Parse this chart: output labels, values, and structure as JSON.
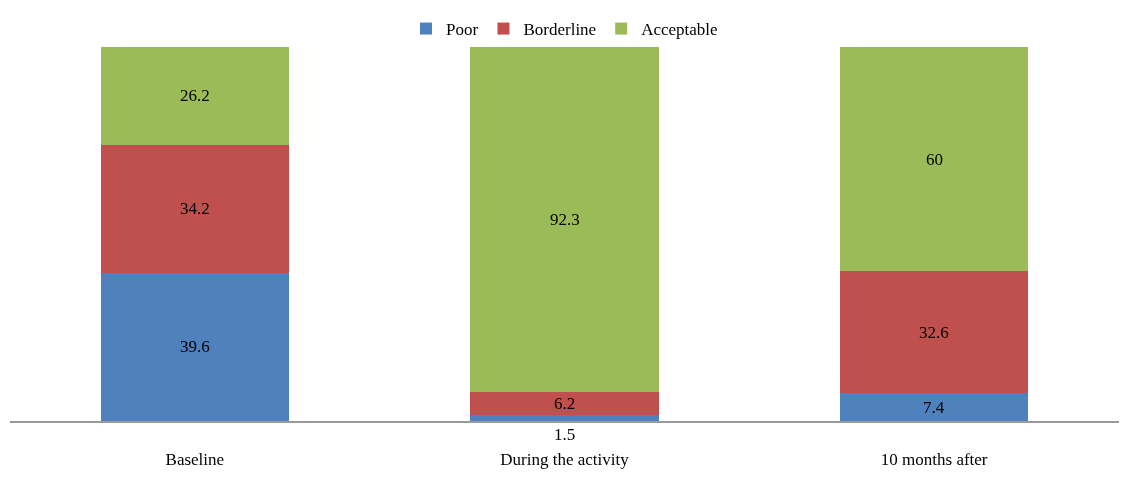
{
  "chart_data": {
    "type": "bar",
    "stacked": true,
    "categories": [
      "Baseline",
      "During the activity",
      "10 months after"
    ],
    "series": [
      {
        "name": "Poor",
        "color": "#4f81bd",
        "values": [
          39.6,
          1.5,
          7.4
        ]
      },
      {
        "name": "Borderline",
        "color": "#c0504d",
        "values": [
          34.2,
          6.2,
          32.6
        ]
      },
      {
        "name": "Acceptable",
        "color": "#9bbb59",
        "values": [
          26.2,
          92.3,
          60
        ]
      }
    ],
    "ylim": [
      0,
      100
    ],
    "tick_labels": "x",
    "data_labels": true,
    "legend": "top",
    "grid": false
  }
}
